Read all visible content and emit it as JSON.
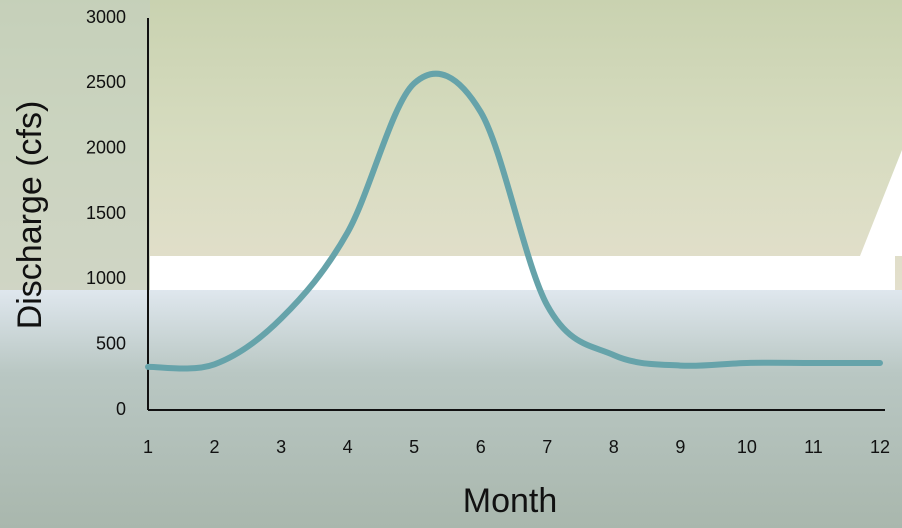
{
  "chart_data": {
    "type": "line",
    "x_label": "Month",
    "y_label": "Discharge (cfs)",
    "x": [
      1,
      2,
      3,
      4,
      5,
      6,
      7,
      8,
      9,
      10,
      11,
      12
    ],
    "series": [
      {
        "name": "Discharge",
        "color": "#66a3aa",
        "values": [
          330,
          350,
          700,
          1360,
          2500,
          2280,
          800,
          420,
          340,
          360,
          360,
          360
        ]
      }
    ],
    "xlim": [
      1,
      12
    ],
    "xticks": [
      1,
      2,
      3,
      4,
      5,
      6,
      7,
      8,
      9,
      10,
      11,
      12
    ],
    "ylim": [
      0,
      3000
    ],
    "yticks": [
      0,
      500,
      1000,
      1500,
      2000,
      2500,
      3000
    ],
    "grid": false
  }
}
